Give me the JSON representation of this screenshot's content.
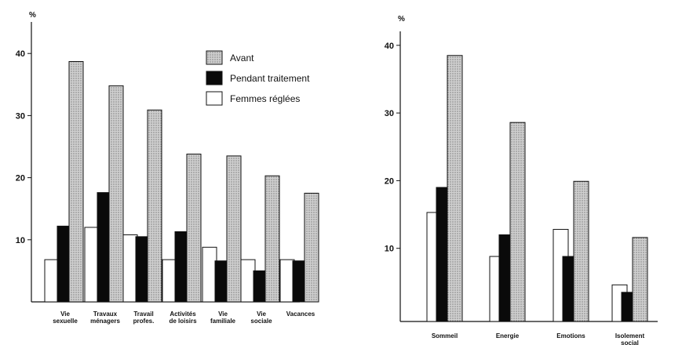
{
  "chart_data": [
    {
      "type": "bar",
      "unit": "%",
      "ylim": [
        0,
        44
      ],
      "yticks": [
        10,
        20,
        30,
        40
      ],
      "legend_position": "top-right",
      "categories": [
        [
          "Vie",
          "sexuelle"
        ],
        [
          "Travaux",
          "ménagers"
        ],
        [
          "Travail",
          "profes."
        ],
        [
          "Activités",
          "de loisirs"
        ],
        [
          "Vie",
          "familiale"
        ],
        [
          "Vie",
          "sociale"
        ],
        [
          "Vacances"
        ]
      ],
      "series": [
        {
          "name": "Femmes réglées",
          "key": "reglees",
          "values": [
            6.8,
            12,
            10.8,
            6.8,
            8.8,
            6.8,
            6.8
          ]
        },
        {
          "name": "Pendant traitement",
          "key": "pendant",
          "values": [
            12.2,
            17.6,
            10.5,
            11.3,
            6.6,
            5,
            6.6
          ]
        },
        {
          "name": "Avant",
          "key": "avant",
          "values": [
            38.7,
            34.8,
            30.9,
            23.8,
            23.5,
            20.3,
            17.5
          ]
        }
      ],
      "legend": [
        "Avant",
        "Pendant traitement",
        "Femmes réglées"
      ]
    },
    {
      "type": "bar",
      "unit": "%",
      "ylim": [
        0,
        42
      ],
      "yticks": [
        10,
        20,
        30,
        40
      ],
      "categories": [
        [
          "Sommeil"
        ],
        [
          "Energie"
        ],
        [
          "Emotions"
        ],
        [
          "Isolement",
          "social"
        ]
      ],
      "series": [
        {
          "name": "Femmes réglées",
          "key": "reglees",
          "values": [
            15.3,
            8.8,
            12.8,
            4.6
          ]
        },
        {
          "name": "Pendant traitement",
          "key": "pendant",
          "values": [
            19,
            12,
            8.8,
            3.5
          ]
        },
        {
          "name": "Avant",
          "key": "avant",
          "values": [
            38.5,
            28.6,
            19.9,
            11.6
          ]
        }
      ]
    }
  ],
  "colors": {
    "reglees": "#ffffff",
    "pendant": "#0a0a0a",
    "avant": "#c4c4c4",
    "ink": "#111111"
  }
}
